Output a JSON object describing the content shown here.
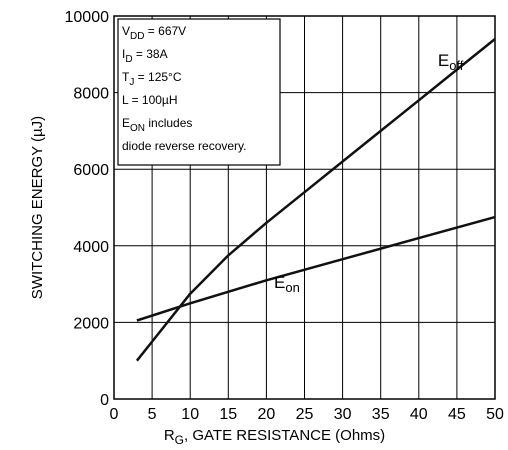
{
  "chart_data": {
    "type": "line",
    "xlabel_main": "R",
    "xlabel_sub": "G",
    "xlabel_rest": ", GATE RESISTANCE (Ohms)",
    "ylabel": "SWITCHING ENERGY (µJ)",
    "xlim": [
      0,
      50
    ],
    "ylim": [
      0,
      10000
    ],
    "x_ticks": [
      0,
      5,
      10,
      15,
      20,
      25,
      30,
      35,
      40,
      45,
      50
    ],
    "y_ticks": [
      0,
      2000,
      4000,
      6000,
      8000,
      10000
    ],
    "grid": true,
    "series": [
      {
        "name": "Eoff",
        "label_main": "E",
        "label_sub": "off",
        "x": [
          3,
          5,
          10,
          15,
          20,
          25,
          30,
          35,
          40,
          45,
          50
        ],
        "values": [
          1000,
          1500,
          2750,
          3750,
          4600,
          5400,
          6200,
          7000,
          7800,
          8600,
          9400
        ]
      },
      {
        "name": "Eon",
        "label_main": "E",
        "label_sub": "on",
        "x": [
          3,
          10,
          20,
          30,
          40,
          50
        ],
        "values": [
          2050,
          2500,
          3100,
          3650,
          4200,
          4750
        ]
      }
    ],
    "annotation_lines": [
      {
        "main": "V",
        "sub": "DD",
        "rest": " = 667V"
      },
      {
        "main": "I",
        "sub": "D",
        "rest": " = 38A"
      },
      {
        "main": "T",
        "sub": "J",
        "rest": " = 125°C"
      },
      {
        "main": "L = 100µH",
        "sub": "",
        "rest": ""
      },
      {
        "main": "E",
        "sub": "ON",
        "rest": "  includes"
      },
      {
        "main": "diode  reverse  recovery.",
        "sub": "",
        "rest": ""
      }
    ]
  }
}
